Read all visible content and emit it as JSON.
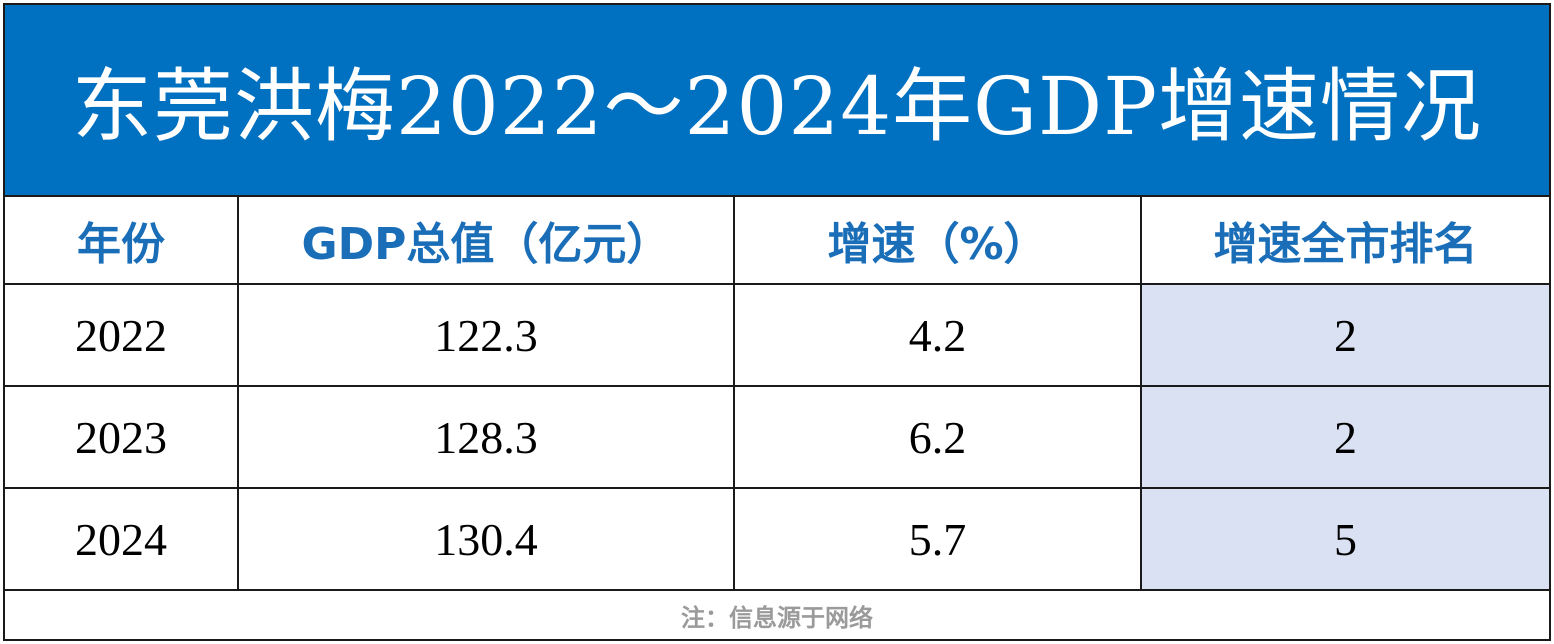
{
  "title": "东莞洪梅2022～2024年GDP增速情况",
  "table": {
    "headers": [
      "年份",
      "GDP总值（亿元）",
      "增速（%）",
      "增速全市排名"
    ],
    "rows": [
      [
        "2022",
        "122.3",
        "4.2",
        "2"
      ],
      [
        "2023",
        "128.3",
        "6.2",
        "2"
      ],
      [
        "2024",
        "130.4",
        "5.7",
        "5"
      ]
    ]
  },
  "footnote": "注：信息源于网络",
  "colors": {
    "title_background": "#0070c0",
    "title_text": "#ffffff",
    "header_text": "#1a6eb8",
    "rank_column_background": "#d9e1f2",
    "footnote_text": "#9a9a9a"
  }
}
